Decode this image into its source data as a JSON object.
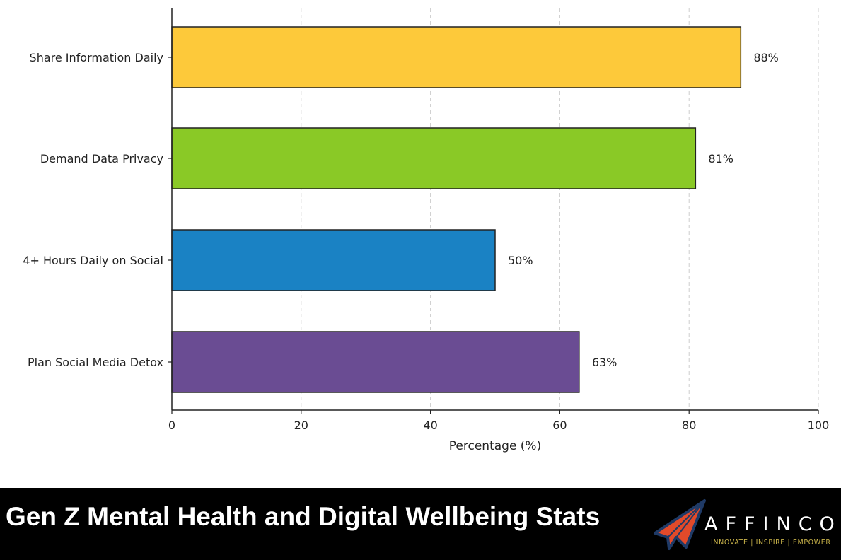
{
  "chart_data": {
    "type": "bar",
    "orientation": "horizontal",
    "categories": [
      "Share Information Daily",
      "Demand Data Privacy",
      "4+ Hours Daily on Social",
      "Plan Social Media Detox"
    ],
    "values": [
      88,
      81,
      50,
      63
    ],
    "data_labels": [
      "88%",
      "81%",
      "50%",
      "63%"
    ],
    "colors": [
      "#fdc93a",
      "#8ac926",
      "#1a82c4",
      "#6a4c93"
    ],
    "xlabel": "Percentage (%)",
    "ylabel": "",
    "xlim": [
      0,
      100
    ],
    "xticks": [
      0,
      20,
      40,
      60,
      80,
      100
    ],
    "grid": "vertical dashed",
    "legend": "none"
  },
  "banner": {
    "title": "Gen Z Mental Health and Digital Wellbeing Stats",
    "logo_name": "AFFINCO",
    "logo_tagline": "INNOVATE | INSPIRE | EMPOWER"
  }
}
